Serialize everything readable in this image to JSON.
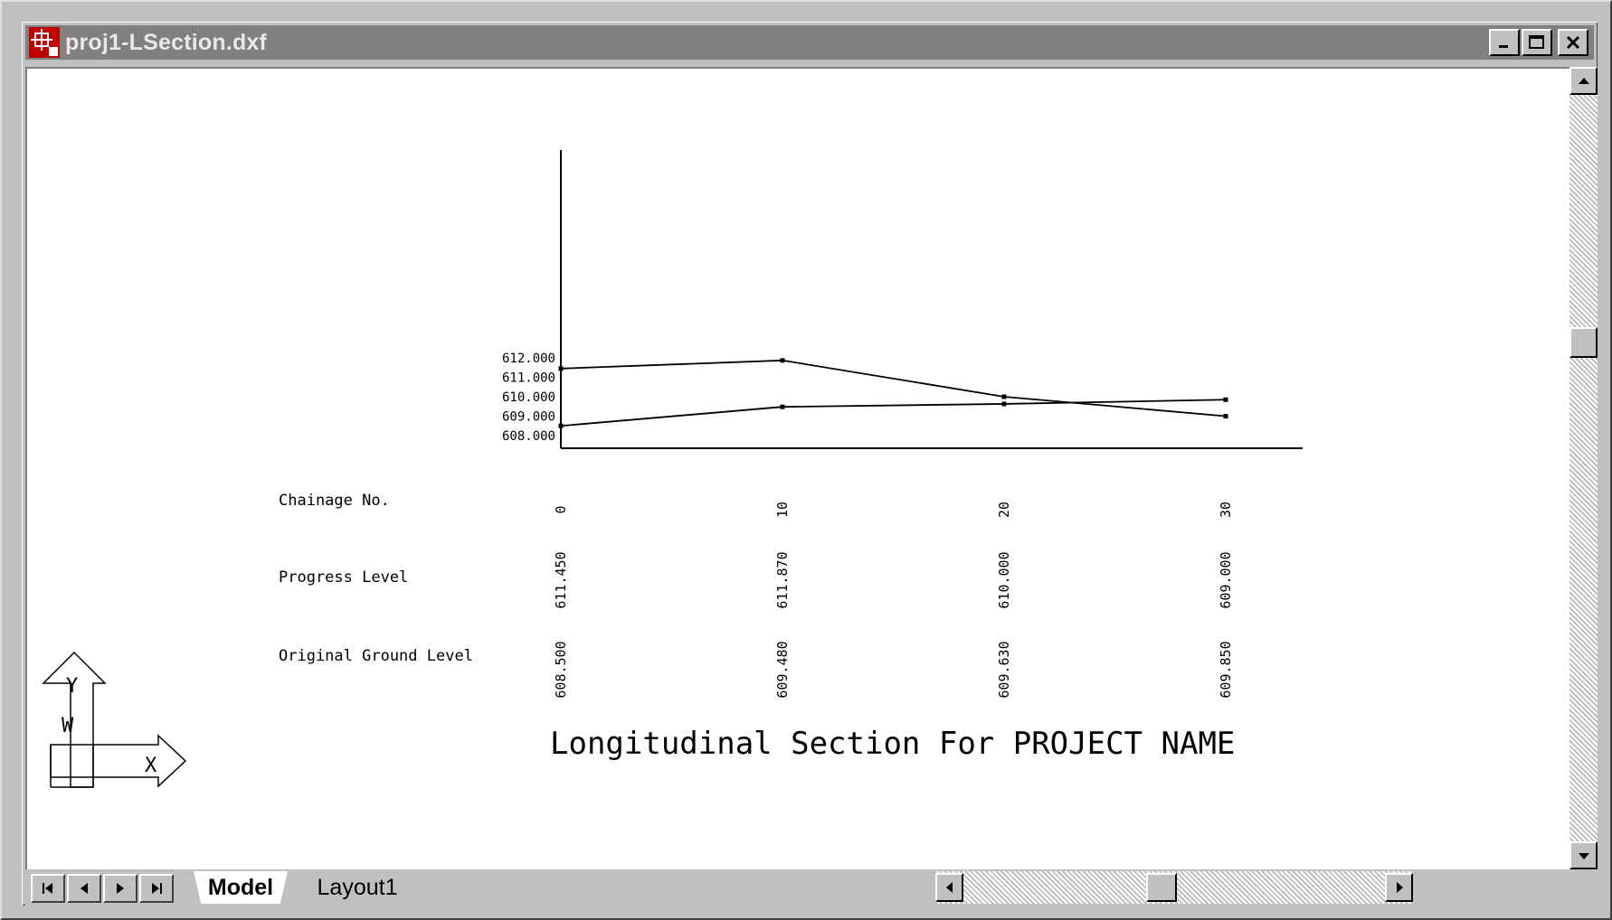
{
  "window": {
    "title": "proj1-LSection.dxf"
  },
  "tabs": {
    "model": "Model",
    "layout1": "Layout1"
  },
  "drawing": {
    "title": "Longitudinal Section For PROJECT NAME",
    "row_labels": {
      "chainage": "Chainage No.",
      "progress": "Progress Level",
      "ground": "Original Ground Level"
    },
    "y_tick_labels": [
      "612.000",
      "611.000",
      "610.000",
      "609.000",
      "608.000"
    ],
    "chainage": [
      "0",
      "10",
      "20",
      "30"
    ],
    "progress_levels": [
      "611.450",
      "611.870",
      "610.000",
      "609.000"
    ],
    "ground_levels": [
      "608.500",
      "609.480",
      "609.630",
      "609.850"
    ]
  },
  "ucs_icon": {
    "y_label": "Y",
    "w_label": "W",
    "x_label": "X"
  },
  "chart_data": {
    "type": "line",
    "x": [
      0,
      10,
      20,
      30
    ],
    "series": [
      {
        "name": "Progress Level",
        "values": [
          611.45,
          611.87,
          610.0,
          609.0
        ]
      },
      {
        "name": "Original Ground Level",
        "values": [
          608.5,
          609.48,
          609.63,
          609.85
        ]
      }
    ],
    "yticks": [
      "612.000",
      "611.000",
      "610.000",
      "609.000",
      "608.000"
    ],
    "ylim": [
      608,
      612
    ]
  },
  "icons": [
    "app-icon",
    "minimize-icon",
    "maximize-icon",
    "close-icon",
    "scroll-up-icon",
    "scroll-down-icon",
    "first-tab-icon",
    "prev-tab-icon",
    "next-tab-icon",
    "last-tab-icon",
    "scroll-left-icon",
    "scroll-right-icon"
  ]
}
